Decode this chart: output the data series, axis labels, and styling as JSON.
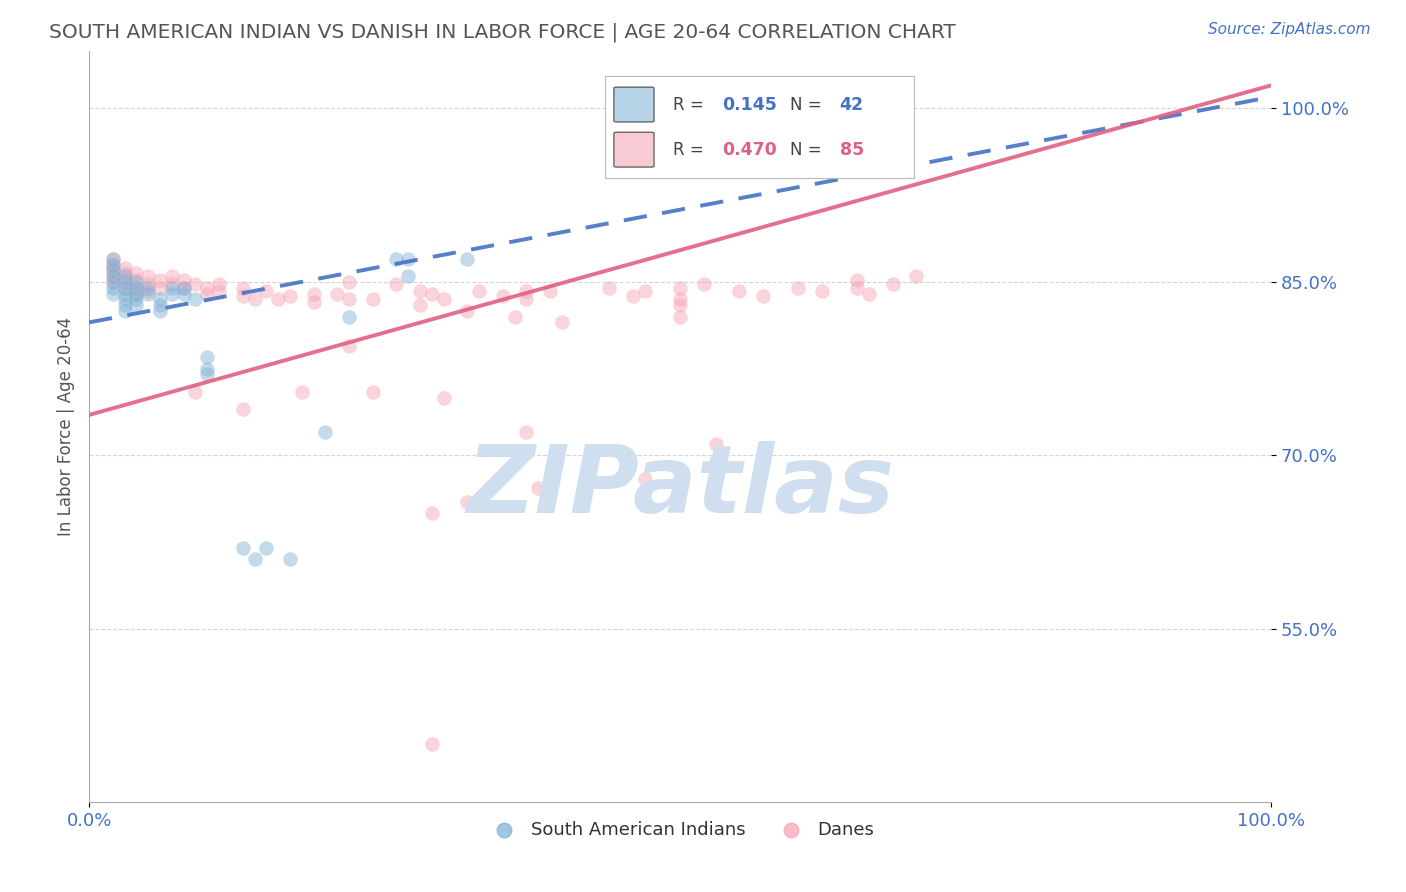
{
  "title": "SOUTH AMERICAN INDIAN VS DANISH IN LABOR FORCE | AGE 20-64 CORRELATION CHART",
  "source": "Source: ZipAtlas.com",
  "ylabel": "In Labor Force | Age 20-64",
  "xlim": [
    0.0,
    1.0
  ],
  "ylim": [
    0.4,
    1.05
  ],
  "yticks": [
    0.55,
    0.7,
    0.85,
    1.0
  ],
  "ytick_labels": [
    "55.0%",
    "70.0%",
    "85.0%",
    "100.0%"
  ],
  "xtick_labels": [
    "0.0%",
    "100.0%"
  ],
  "xticks": [
    0.0,
    1.0
  ],
  "blue_color": "#7bafd4",
  "pink_color": "#f4a0b0",
  "blue_line_color": "#4472c4",
  "pink_line_color": "#e06080",
  "axis_label_color": "#4472c4",
  "title_color": "#555555",
  "watermark_color": "#d0dff0",
  "legend_R_blue": "0.145",
  "legend_N_blue": "42",
  "legend_R_pink": "0.470",
  "legend_N_pink": "85",
  "blue_line_x0": 0.0,
  "blue_line_y0": 0.815,
  "blue_line_x1": 1.0,
  "blue_line_y1": 1.01,
  "pink_line_x0": 0.0,
  "pink_line_y0": 0.735,
  "pink_line_x1": 1.0,
  "pink_line_y1": 1.02,
  "blue_x": [
    0.27,
    0.32,
    0.02,
    0.02,
    0.02,
    0.02,
    0.02,
    0.02,
    0.02,
    0.03,
    0.03,
    0.03,
    0.03,
    0.03,
    0.03,
    0.03,
    0.04,
    0.04,
    0.04,
    0.04,
    0.04,
    0.05,
    0.05,
    0.06,
    0.06,
    0.06,
    0.07,
    0.07,
    0.08,
    0.08,
    0.09,
    0.1,
    0.1,
    0.1,
    0.13,
    0.15,
    0.17,
    0.22,
    0.26,
    0.27,
    0.14,
    0.2
  ],
  "blue_y": [
    0.87,
    0.87,
    0.87,
    0.865,
    0.86,
    0.855,
    0.85,
    0.845,
    0.84,
    0.855,
    0.85,
    0.845,
    0.84,
    0.835,
    0.83,
    0.825,
    0.85,
    0.845,
    0.84,
    0.835,
    0.83,
    0.845,
    0.84,
    0.835,
    0.83,
    0.825,
    0.845,
    0.84,
    0.845,
    0.84,
    0.835,
    0.785,
    0.775,
    0.77,
    0.62,
    0.62,
    0.61,
    0.82,
    0.87,
    0.855,
    0.61,
    0.72
  ],
  "pink_x": [
    0.02,
    0.02,
    0.02,
    0.02,
    0.02,
    0.03,
    0.03,
    0.03,
    0.03,
    0.04,
    0.04,
    0.04,
    0.04,
    0.05,
    0.05,
    0.05,
    0.06,
    0.06,
    0.07,
    0.07,
    0.08,
    0.08,
    0.09,
    0.1,
    0.1,
    0.11,
    0.11,
    0.13,
    0.13,
    0.14,
    0.15,
    0.16,
    0.17,
    0.19,
    0.19,
    0.21,
    0.22,
    0.24,
    0.26,
    0.28,
    0.29,
    0.3,
    0.33,
    0.35,
    0.37,
    0.37,
    0.39,
    0.44,
    0.46,
    0.47,
    0.5,
    0.52,
    0.55,
    0.57,
    0.6,
    0.62,
    0.65,
    0.65,
    0.66,
    0.68,
    0.7,
    0.53,
    0.37,
    0.3,
    0.24,
    0.18,
    0.13,
    0.09,
    0.28,
    0.32,
    0.36,
    0.4,
    0.5,
    0.47,
    0.53,
    0.29,
    0.32,
    0.38,
    0.45,
    0.5,
    0.22,
    0.22,
    0.5,
    0.29,
    0.5
  ],
  "pink_y": [
    0.87,
    0.865,
    0.86,
    0.855,
    0.85,
    0.862,
    0.858,
    0.852,
    0.845,
    0.858,
    0.852,
    0.846,
    0.84,
    0.855,
    0.848,
    0.842,
    0.852,
    0.845,
    0.855,
    0.848,
    0.852,
    0.845,
    0.848,
    0.845,
    0.84,
    0.848,
    0.842,
    0.845,
    0.838,
    0.835,
    0.842,
    0.835,
    0.838,
    0.84,
    0.833,
    0.84,
    0.795,
    0.835,
    0.848,
    0.842,
    0.84,
    0.835,
    0.842,
    0.838,
    0.842,
    0.835,
    0.842,
    0.845,
    0.838,
    0.842,
    0.845,
    0.848,
    0.842,
    0.838,
    0.845,
    0.842,
    0.852,
    0.845,
    0.84,
    0.848,
    0.855,
    0.71,
    0.72,
    0.75,
    0.755,
    0.755,
    0.74,
    0.755,
    0.83,
    0.825,
    0.82,
    0.815,
    0.82,
    0.68,
    0.695,
    0.65,
    0.66,
    0.672,
    0.68,
    0.68,
    0.85,
    0.835,
    0.835,
    0.45,
    0.83
  ],
  "grid_color": "#cccccc",
  "background_color": "#ffffff",
  "marker_size": 110,
  "marker_alpha": 0.45,
  "line_width": 2.8
}
